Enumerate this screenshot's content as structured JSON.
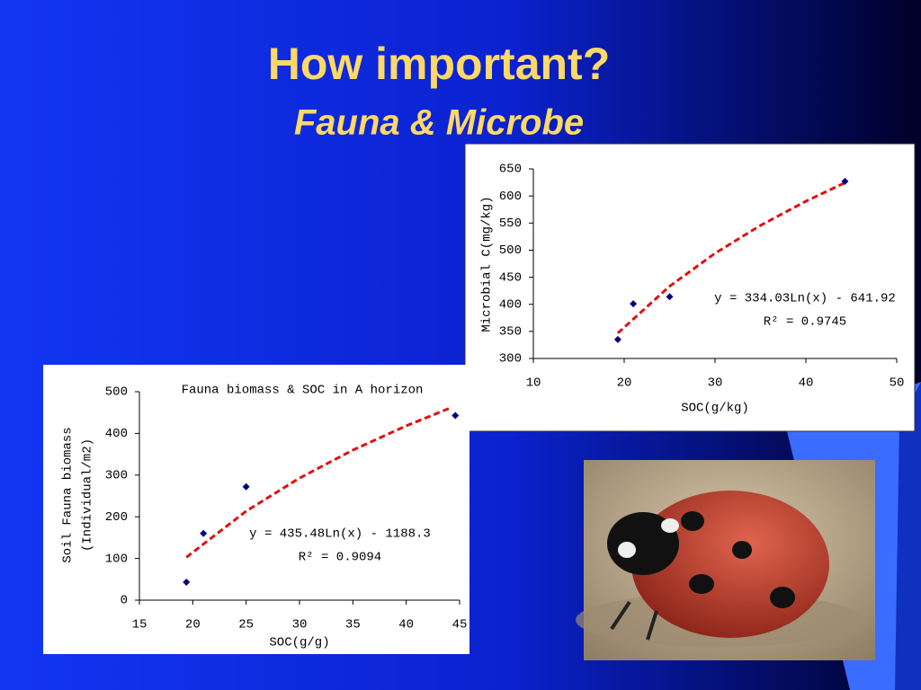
{
  "header": {
    "title": "How important?",
    "subtitle": "Fauna & Microbe"
  },
  "chart_data": [
    {
      "type": "scatter",
      "x_label": "SOC(g/kg)",
      "y_label": [
        "Microbial C(mg/kg)"
      ],
      "xlim": [
        10,
        50
      ],
      "xticks": [
        10,
        20,
        30,
        40,
        50
      ],
      "ylim": [
        300,
        650
      ],
      "yticks": [
        300,
        350,
        400,
        450,
        500,
        550,
        600,
        650
      ],
      "series": [
        {
          "color": "#000080",
          "x": [
            19.3,
            21,
            25,
            44.3
          ],
          "values": [
            335,
            401,
            414,
            627
          ]
        }
      ],
      "trendline": {
        "color": "#e01010",
        "equation": "y = 334.03Ln(x) - 641.92",
        "r2": "R² = 0.9745",
        "x": [
          19.3,
          25,
          30,
          35,
          40,
          44.3
        ],
        "values": [
          346.8,
          433.3,
          494.2,
          545.6,
          590.3,
          624.4
        ]
      }
    },
    {
      "type": "scatter",
      "title": "Fauna biomass & SOC in A horizon",
      "x_label": "SOC(g/g)",
      "y_label": [
        "Soil Fauna biomass",
        "(Individual/m2)"
      ],
      "xlim": [
        15,
        45
      ],
      "xticks": [
        15,
        20,
        25,
        30,
        35,
        40,
        45
      ],
      "ylim": [
        0,
        500
      ],
      "yticks": [
        0,
        100,
        200,
        300,
        400,
        500
      ],
      "series": [
        {
          "color": "#000080",
          "x": [
            19.4,
            21,
            25,
            44.6
          ],
          "values": [
            43,
            160,
            272,
            443
          ]
        }
      ],
      "trendline": {
        "color": "#e01010",
        "equation": "y = 435.48Ln(x) - 1188.3",
        "r2": "R² = 0.9094",
        "x": [
          19.4,
          25,
          30,
          35,
          40,
          44
        ],
        "values": [
          102.9,
          213.5,
          292.8,
          360,
          418.2,
          459.7
        ]
      }
    }
  ]
}
